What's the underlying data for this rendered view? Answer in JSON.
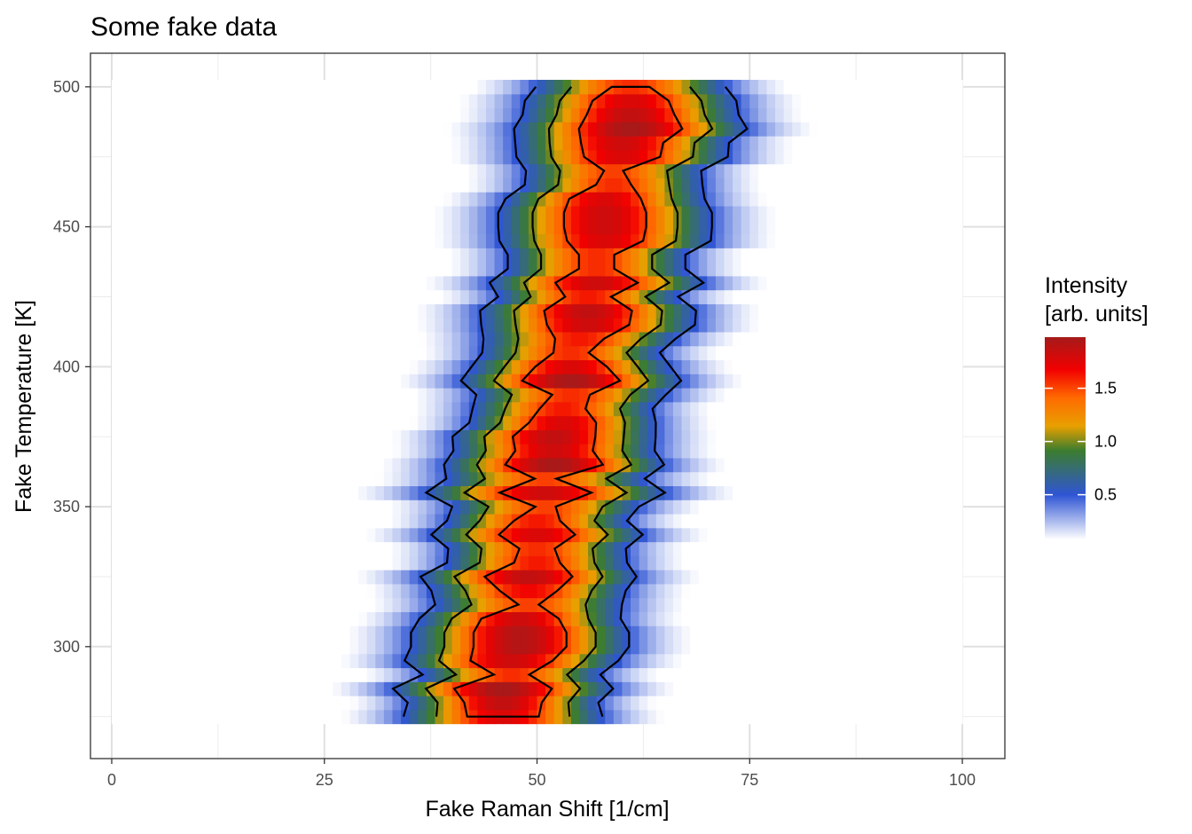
{
  "chart_data": {
    "type": "heatmap",
    "title": "Some fake data",
    "xlabel": "Fake Raman Shift [1/cm]",
    "ylabel": "Fake Temperature [K]",
    "xlim": [
      -2.5,
      105
    ],
    "ylim": [
      260,
      512
    ],
    "x_ticks": [
      0,
      25,
      50,
      75,
      100
    ],
    "x_tick_labels": [
      "0",
      "25",
      "50",
      "75",
      "100"
    ],
    "y_ticks": [
      300,
      350,
      400,
      450,
      500
    ],
    "y_tick_labels": [
      "300",
      "350",
      "400",
      "450",
      "500"
    ],
    "grid": true,
    "legend": {
      "title_lines": [
        "Intensity",
        "[arb. units]"
      ],
      "placement": "right",
      "breaks": [
        0.5,
        1.0,
        1.5
      ],
      "break_labels": [
        "0.5",
        "1.0",
        "1.5"
      ],
      "range": [
        0.08,
        1.98
      ]
    },
    "colors": {
      "low": "#ffffff",
      "blue": "#2f55d4",
      "green": "#3c7d2e",
      "orange": "#e8a000",
      "orange_red": "#ff6a00",
      "red": "#f20000",
      "dark_red": "#a51a1a"
    },
    "heatmap": {
      "x_range": [
        0,
        100
      ],
      "temperatures": [
        275,
        280,
        285,
        290,
        295,
        300,
        305,
        310,
        315,
        320,
        325,
        330,
        335,
        340,
        345,
        350,
        355,
        360,
        365,
        370,
        375,
        380,
        385,
        390,
        395,
        400,
        405,
        410,
        415,
        420,
        425,
        430,
        435,
        440,
        445,
        450,
        455,
        460,
        465,
        470,
        475,
        480,
        485,
        490,
        495,
        500
      ],
      "peak_centers": [
        46,
        46,
        46,
        47,
        47,
        48,
        48,
        48,
        49,
        49,
        49,
        50,
        50,
        50,
        50,
        51,
        51,
        51,
        52,
        52,
        52,
        53,
        53,
        54,
        54,
        54,
        54,
        55,
        56,
        56,
        56,
        57,
        57,
        57,
        58,
        58,
        58,
        58,
        59,
        59,
        60,
        60,
        61,
        61,
        61,
        61
      ],
      "peak_amplitudes": [
        1.75,
        1.85,
        1.95,
        1.55,
        1.8,
        1.9,
        1.9,
        1.8,
        1.5,
        1.65,
        1.85,
        1.6,
        1.55,
        1.75,
        1.6,
        1.5,
        1.8,
        1.5,
        1.95,
        1.8,
        1.85,
        1.75,
        1.6,
        1.55,
        1.95,
        1.75,
        1.55,
        1.6,
        1.8,
        1.85,
        1.6,
        1.8,
        1.55,
        1.55,
        1.75,
        1.8,
        1.8,
        1.75,
        1.55,
        1.5,
        1.75,
        1.8,
        1.95,
        1.85,
        1.75,
        1.55
      ],
      "peak_widths": [
        16,
        15,
        17,
        15,
        17,
        17,
        17,
        16,
        16,
        16,
        17,
        15,
        15,
        17,
        15,
        16,
        19,
        17,
        17,
        16,
        16,
        15,
        15,
        16,
        17,
        16,
        15,
        16,
        17,
        17,
        15,
        17,
        15,
        15,
        17,
        17,
        17,
        16,
        15,
        15,
        17,
        17,
        18,
        17,
        17,
        16
      ]
    },
    "contour_levels": [
      0.5,
      1.0,
      1.5
    ]
  }
}
